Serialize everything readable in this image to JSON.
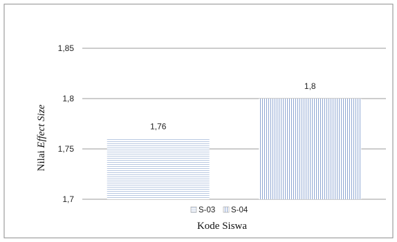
{
  "chart_data": {
    "type": "bar",
    "categories": [
      "S-03",
      "S-04"
    ],
    "values": [
      1.76,
      1.8
    ],
    "data_labels": [
      "1,76",
      "1,8"
    ],
    "ylim": [
      1.7,
      1.85
    ],
    "yticks": [
      1.7,
      1.75,
      1.8,
      1.85
    ],
    "ytick_labels": [
      "1,7",
      "1,75",
      "1,8",
      "1,85"
    ],
    "ylabel_plain": "Nilai ",
    "ylabel_italic": "Effect Size",
    "xlabel": "Kode Siswa",
    "legend": [
      "S-03",
      "S-04"
    ],
    "legend_position": "bottom",
    "grid": true,
    "series_colors": [
      "#c9d6ea",
      "#9fb4d8"
    ],
    "grid_color": "#9a9a9a"
  }
}
